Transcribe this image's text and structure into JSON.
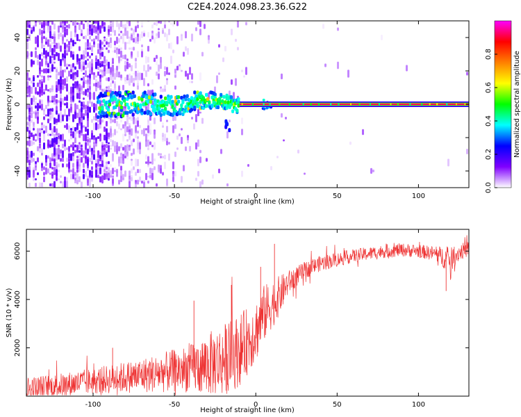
{
  "title": "C2E4.2024.098.23.36.G22",
  "chart_data": [
    {
      "type": "heatmap",
      "xlabel": "Height of straight line (km)",
      "ylabel": "Frequency (Hz)",
      "xlim": [
        -141,
        131
      ],
      "ylim": [
        -50,
        50
      ],
      "xticks": [
        -100,
        -50,
        0,
        50,
        100
      ],
      "yticks": [
        -40,
        -20,
        0,
        20,
        40
      ],
      "grid": false,
      "colorbar": {
        "label": "Normalized spectral amplitude",
        "range": [
          0,
          1
        ],
        "ticks": [
          0.0,
          0.2,
          0.4,
          0.6,
          0.8
        ],
        "colormap": [
          "#ffffff",
          "#8000ff",
          "#0000ff",
          "#00ffff",
          "#00ff00",
          "#ffff00",
          "#ff8000",
          "#ff0000",
          "#ff00ff"
        ]
      },
      "features": {
        "carrier_frequency_hz": 0,
        "carrier_strong_from_km": -10,
        "noise_region_until_km": -55,
        "noise_density_fading_km": [
          -141,
          -30
        ],
        "turbulent_band_km": [
          -97,
          -10
        ],
        "turbulent_band_halfwidth_hz": [
          8,
          4
        ],
        "detached_blob_km": -17,
        "detached_blob_hz": -14
      }
    },
    {
      "type": "line",
      "xlabel": "Height of straight line (km)",
      "ylabel": "SNR (10 * v/v)",
      "xlim": [
        -141,
        131
      ],
      "ylim": [
        0,
        6900
      ],
      "xticks": [
        -100,
        -50,
        0,
        50,
        100
      ],
      "yticks": [
        2000,
        4000,
        6000
      ],
      "grid": false,
      "series": [
        {
          "color": "#ee3333",
          "trend_x": [
            -141,
            -120,
            -100,
            -80,
            -60,
            -40,
            -30,
            -20,
            -10,
            0,
            5,
            10,
            15,
            20,
            30,
            40,
            50,
            60,
            70,
            80,
            90,
            100,
            110,
            115,
            120,
            125,
            131
          ],
          "trend_y": [
            300,
            450,
            620,
            780,
            950,
            1150,
            1300,
            1500,
            1900,
            2700,
            3400,
            3800,
            4200,
            4700,
            5200,
            5500,
            5650,
            5800,
            5900,
            6000,
            6050,
            6000,
            5900,
            5750,
            5650,
            5950,
            6100
          ],
          "noise_amplitude_y": [
            500,
            500,
            550,
            650,
            800,
            1000,
            1300,
            1500,
            1500,
            1300,
            1200,
            1000,
            800,
            500,
            350,
            320,
            300,
            280,
            280,
            280,
            280,
            280,
            300,
            450,
            500,
            350,
            320
          ],
          "spikes": [
            {
              "x": 11.5,
              "y": 6300
            },
            {
              "x": 3,
              "y": 5350
            },
            {
              "x": -38,
              "y": 3950
            },
            {
              "x": -15,
              "y": 4600
            },
            {
              "x": 117,
              "y": 4350
            },
            {
              "x": -88,
              "y": 2000
            }
          ]
        }
      ]
    }
  ]
}
